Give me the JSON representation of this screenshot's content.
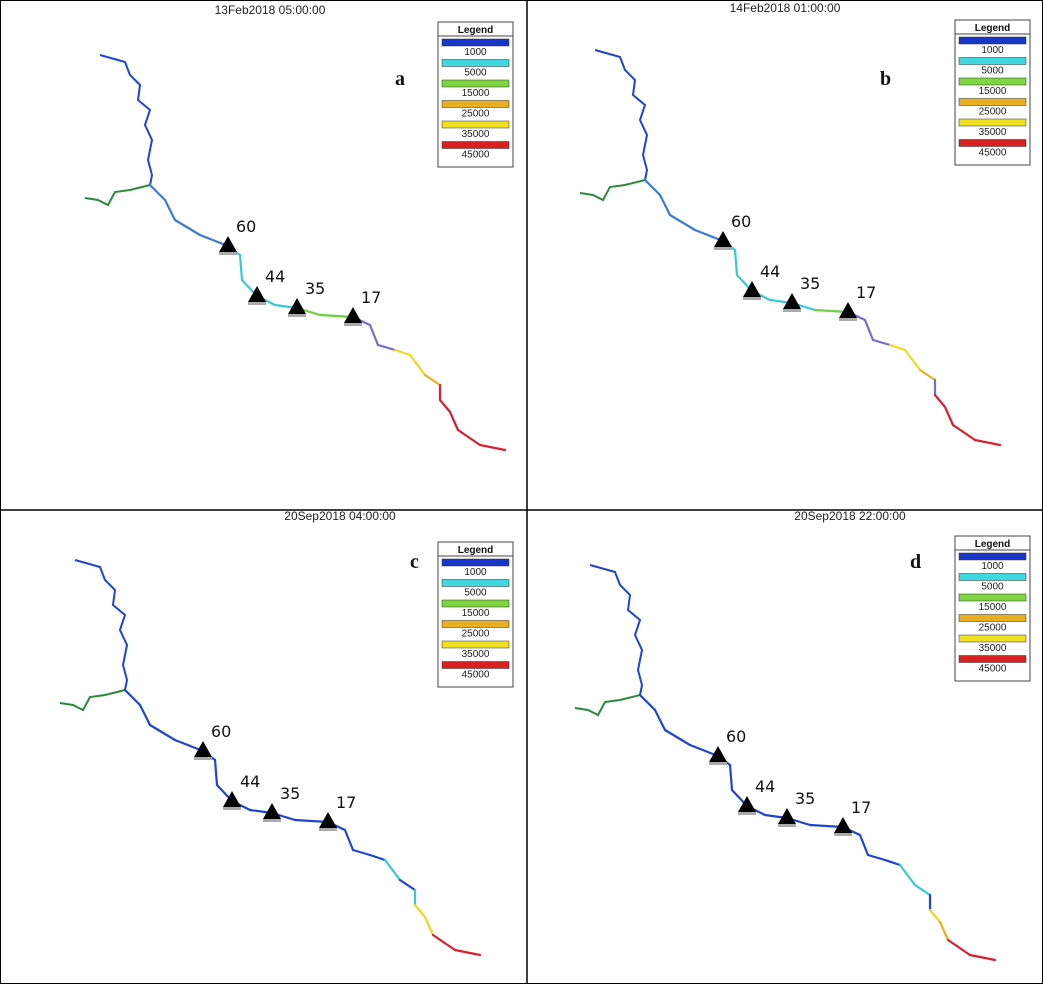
{
  "panels": [
    {
      "timestamp": "13Feb2018 05:00:00",
      "letter": "a",
      "legend": {
        "title": "Legend",
        "items": [
          {
            "label": "1000",
            "color": "#1a36c8"
          },
          {
            "label": "5000",
            "color": "#40d8e0"
          },
          {
            "label": "15000",
            "color": "#7ed640"
          },
          {
            "label": "25000",
            "color": "#e8b020"
          },
          {
            "label": "35000",
            "color": "#f0e020"
          },
          {
            "label": "45000",
            "color": "#d82020"
          }
        ]
      },
      "stations": [
        {
          "label": "60"
        },
        {
          "label": "44"
        },
        {
          "label": "35"
        },
        {
          "label": "17"
        }
      ]
    },
    {
      "timestamp": "14Feb2018 01:00:00",
      "letter": "b",
      "legend": {
        "title": "Legend",
        "items": [
          {
            "label": "1000",
            "color": "#1a36c8"
          },
          {
            "label": "5000",
            "color": "#40d8e0"
          },
          {
            "label": "15000",
            "color": "#7ed640"
          },
          {
            "label": "25000",
            "color": "#e8b020"
          },
          {
            "label": "35000",
            "color": "#f0e020"
          },
          {
            "label": "45000",
            "color": "#d82020"
          }
        ]
      },
      "stations": [
        {
          "label": "60"
        },
        {
          "label": "44"
        },
        {
          "label": "35"
        },
        {
          "label": "17"
        }
      ]
    },
    {
      "timestamp": "20Sep2018 04:00:00",
      "letter": "c",
      "legend": {
        "title": "Legend",
        "items": [
          {
            "label": "1000",
            "color": "#1a36c8"
          },
          {
            "label": "5000",
            "color": "#40d8e0"
          },
          {
            "label": "15000",
            "color": "#7ed640"
          },
          {
            "label": "25000",
            "color": "#e8b020"
          },
          {
            "label": "35000",
            "color": "#f0e020"
          },
          {
            "label": "45000",
            "color": "#d82020"
          }
        ]
      },
      "stations": [
        {
          "label": "60"
        },
        {
          "label": "44"
        },
        {
          "label": "35"
        },
        {
          "label": "17"
        }
      ]
    },
    {
      "timestamp": "20Sep2018 22:00:00",
      "letter": "d",
      "legend": {
        "title": "Legend",
        "items": [
          {
            "label": "1000",
            "color": "#1a36c8"
          },
          {
            "label": "5000",
            "color": "#40d8e0"
          },
          {
            "label": "15000",
            "color": "#7ed640"
          },
          {
            "label": "25000",
            "color": "#e8b020"
          },
          {
            "label": "35000",
            "color": "#f0e020"
          },
          {
            "label": "45000",
            "color": "#d82020"
          }
        ]
      },
      "stations": [
        {
          "label": "60"
        },
        {
          "label": "44"
        },
        {
          "label": "35"
        },
        {
          "label": "17"
        }
      ]
    }
  ]
}
